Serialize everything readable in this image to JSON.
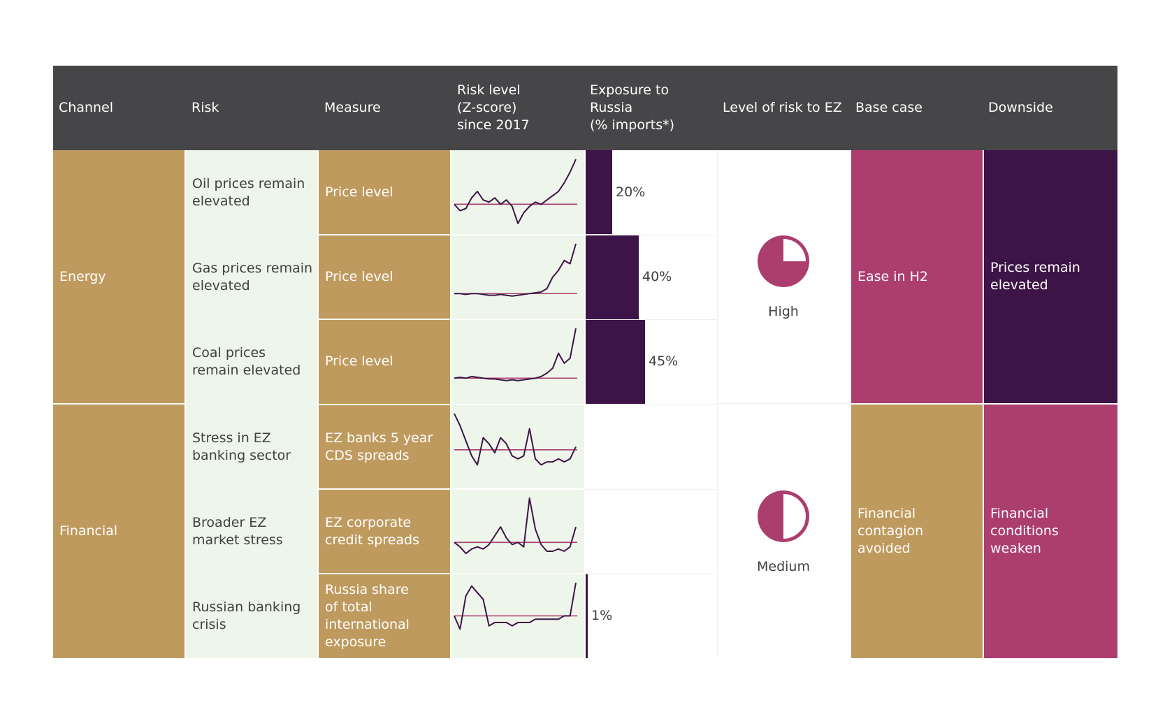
{
  "header": {
    "channel": "Channel",
    "risk": "Risk",
    "measure": "Measure",
    "risk_level": [
      "Risk level",
      "(Z-score)",
      "since 2017"
    ],
    "exposure": [
      "Exposure to",
      "Russia",
      "(% imports*)"
    ],
    "level_of_risk": "Level of risk to EZ",
    "base_case": "Base case",
    "downside": "Downside"
  },
  "groups": [
    {
      "channel": "Energy",
      "level": "High",
      "base_case": "Ease in H2",
      "downside": [
        "Prices remain",
        "elevated"
      ]
    },
    {
      "channel": "Financial",
      "level": "Medium",
      "base_case": [
        "Financial",
        "contagion",
        "avoided"
      ],
      "downside": [
        "Financial",
        "conditions",
        "weaken"
      ]
    }
  ],
  "rows": [
    {
      "risk": [
        "Oil prices remain",
        "elevated"
      ],
      "measure": [
        "Price level"
      ],
      "exposure_label": "20%"
    },
    {
      "risk": [
        "Gas prices remain",
        "elevated"
      ],
      "measure": [
        "Price level"
      ],
      "exposure_label": "40%"
    },
    {
      "risk": [
        "Coal prices",
        "remain elevated"
      ],
      "measure": [
        "Price level"
      ],
      "exposure_label": "45%"
    },
    {
      "risk": [
        "Stress in EZ",
        "banking sector"
      ],
      "measure": [
        "EZ banks 5 year",
        "CDS spreads"
      ],
      "exposure_label": ""
    },
    {
      "risk": [
        "Broader EZ",
        "market stress"
      ],
      "measure": [
        "EZ corporate",
        "credit spreads"
      ],
      "exposure_label": ""
    },
    {
      "risk": [
        "Russian banking",
        "crisis"
      ],
      "measure": [
        "Russia share",
        "of total",
        "international",
        "exposure"
      ],
      "exposure_label": "1%"
    }
  ],
  "colors": {
    "header_bg": "#464648",
    "tan": "#bf9a5e",
    "mint": "#eef5ea",
    "magenta": "#ab3d6f",
    "purple": "#3d1447",
    "zero_line": "#ab3d6f",
    "text": "#404042"
  },
  "chart_data": {
    "type": "table",
    "exposure_bars": {
      "values": [
        20,
        40,
        45,
        null,
        null,
        1
      ],
      "unit": "%",
      "max": 45
    },
    "risk_levels": [
      {
        "row": "Oil prices remain elevated",
        "level": "High",
        "pie_filled_fraction": 0.75
      },
      {
        "row": "Stress in EZ banking sector",
        "level": "Medium",
        "pie_filled_fraction": 0.5
      }
    ],
    "sparklines": [
      {
        "row": "Oil prices remain elevated",
        "y": [
          0.0,
          -0.3,
          -0.2,
          0.3,
          0.6,
          0.2,
          0.1,
          0.3,
          0.0,
          0.2,
          -0.1,
          -0.9,
          -0.4,
          -0.1,
          0.1,
          0.0,
          0.2,
          0.4,
          0.6,
          1.0,
          1.5,
          2.1
        ]
      },
      {
        "row": "Gas prices remain elevated",
        "y": [
          0.0,
          0.0,
          -0.05,
          0.0,
          0.0,
          -0.05,
          -0.1,
          -0.1,
          -0.05,
          -0.1,
          -0.15,
          -0.1,
          -0.05,
          0.0,
          0.05,
          0.1,
          0.3,
          1.0,
          1.4,
          2.0,
          1.8,
          3.0
        ]
      },
      {
        "row": "Coal prices remain elevated",
        "y": [
          0.0,
          0.05,
          0.0,
          0.1,
          0.05,
          0.0,
          -0.05,
          -0.05,
          -0.1,
          -0.15,
          -0.1,
          -0.15,
          -0.1,
          -0.05,
          0.0,
          0.1,
          0.3,
          0.6,
          1.5,
          0.9,
          1.2,
          3.0
        ]
      },
      {
        "row": "Stress in EZ banking sector",
        "y": [
          1.2,
          0.8,
          0.3,
          -0.2,
          -0.5,
          0.4,
          0.2,
          -0.1,
          0.4,
          0.2,
          -0.2,
          -0.3,
          -0.2,
          0.7,
          -0.3,
          -0.5,
          -0.4,
          -0.4,
          -0.3,
          -0.4,
          -0.3,
          0.1
        ]
      },
      {
        "row": "Broader EZ market stress",
        "y": [
          0.0,
          -0.2,
          -0.5,
          -0.3,
          -0.2,
          -0.3,
          -0.1,
          0.3,
          0.7,
          0.2,
          -0.1,
          0.0,
          -0.2,
          2.0,
          0.6,
          -0.1,
          -0.4,
          -0.4,
          -0.3,
          -0.4,
          -0.2,
          0.7
        ]
      },
      {
        "row": "Russian banking crisis",
        "y": [
          0.0,
          -0.4,
          0.6,
          0.9,
          0.7,
          0.5,
          -0.3,
          -0.2,
          -0.2,
          -0.2,
          -0.3,
          -0.2,
          -0.2,
          -0.2,
          -0.1,
          -0.1,
          -0.1,
          -0.1,
          -0.1,
          0.0,
          0.0,
          1.0
        ]
      }
    ]
  }
}
